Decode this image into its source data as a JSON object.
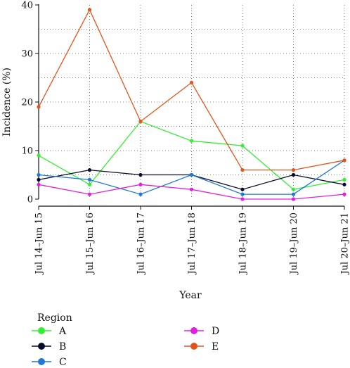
{
  "chart_data": {
    "type": "line",
    "xlabel": "Year",
    "ylabel": "Incidence (%)",
    "categories": [
      "Jul 14–Jun 15",
      "Jul 15–Jun 16",
      "Jul 16–Jun 17",
      "Jul 17–Jun 18",
      "Jul 18–Jun 19",
      "Jul 19–Jun 20",
      "Jul 20–Jun 21"
    ],
    "ylim": [
      0,
      40
    ],
    "yticks": [
      0,
      10,
      20,
      30,
      40
    ],
    "grid": true,
    "legend_title": "Region",
    "legend_position": "bottom",
    "series": [
      {
        "name": "A",
        "color": "#33ee33",
        "values": [
          9,
          3,
          16,
          12,
          11,
          2,
          4
        ]
      },
      {
        "name": "B",
        "color": "#0a0a2a",
        "values": [
          4,
          6,
          5,
          5,
          2,
          5,
          3
        ]
      },
      {
        "name": "C",
        "color": "#1f78d1",
        "values": [
          5,
          4,
          1,
          5,
          1,
          1,
          8
        ]
      },
      {
        "name": "D",
        "color": "#dd22dd",
        "values": [
          3,
          1,
          3,
          2,
          0,
          0,
          1
        ]
      },
      {
        "name": "E",
        "color": "#e0561b",
        "values": [
          19,
          39,
          16,
          24,
          6,
          6,
          8
        ]
      }
    ]
  }
}
